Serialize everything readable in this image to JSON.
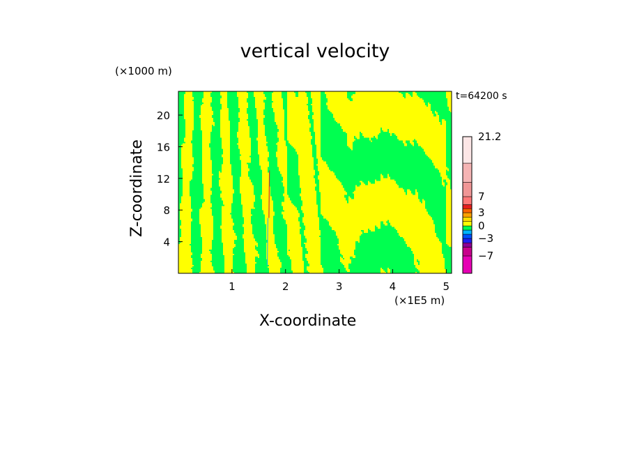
{
  "chart_data": {
    "type": "heatmap",
    "title": "vertical velocity",
    "xlabel": "X-coordinate",
    "ylabel": "Z-coordinate",
    "x_units": "(×1E5 m)",
    "y_units": "(×1000 m)",
    "time_label": "t=64200 s",
    "xlim": [
      0,
      5.1
    ],
    "ylim": [
      0,
      23
    ],
    "x_ticks": [
      {
        "value": 1,
        "label": "1"
      },
      {
        "value": 2,
        "label": "2"
      },
      {
        "value": 3,
        "label": "3"
      },
      {
        "value": 4,
        "label": "4"
      },
      {
        "value": 5,
        "label": "5"
      }
    ],
    "y_ticks": [
      {
        "value": 4,
        "label": "4"
      },
      {
        "value": 8,
        "label": "8"
      },
      {
        "value": 12,
        "label": "12"
      },
      {
        "value": 16,
        "label": "16"
      },
      {
        "value": 20,
        "label": "20"
      }
    ],
    "colorbar": {
      "range": [
        -10,
        21.2
      ],
      "bands": [
        {
          "from": -10,
          "to": -7,
          "color": "#e600b4"
        },
        {
          "from": -7,
          "to": -5,
          "color": "#c8008c"
        },
        {
          "from": -5,
          "to": -4,
          "color": "#8c0096"
        },
        {
          "from": -4,
          "to": -3,
          "color": "#1e1ef0"
        },
        {
          "from": -3,
          "to": -2,
          "color": "#0050ff"
        },
        {
          "from": -2,
          "to": -1,
          "color": "#00b4ff"
        },
        {
          "from": -1,
          "to": 0,
          "color": "#00ff50"
        },
        {
          "from": 0,
          "to": 1,
          "color": "#ffff00"
        },
        {
          "from": 1,
          "to": 2,
          "color": "#ffdc00"
        },
        {
          "from": 2,
          "to": 3,
          "color": "#ffa000"
        },
        {
          "from": 3,
          "to": 4,
          "color": "#ff6400"
        },
        {
          "from": 4,
          "to": 5,
          "color": "#e61e1e"
        },
        {
          "from": 5,
          "to": 7,
          "color": "#ff7878"
        },
        {
          "from": 7,
          "to": 10,
          "color": "#f09696"
        },
        {
          "from": 10,
          "to": 14,
          "color": "#f5b4b4"
        },
        {
          "from": 14,
          "to": 21.2,
          "color": "#fce6e6"
        }
      ],
      "labels": [
        {
          "value": 21.2,
          "label": "21.2"
        },
        {
          "value": 7,
          "label": "7"
        },
        {
          "value": 3,
          "label": "3"
        },
        {
          "value": 0,
          "label": "0"
        },
        {
          "value": -3,
          "label": "−3"
        },
        {
          "value": -7,
          "label": "−7"
        }
      ]
    },
    "field_colors": {
      "positive": "#ffff00",
      "negative": "#00ff50"
    }
  }
}
